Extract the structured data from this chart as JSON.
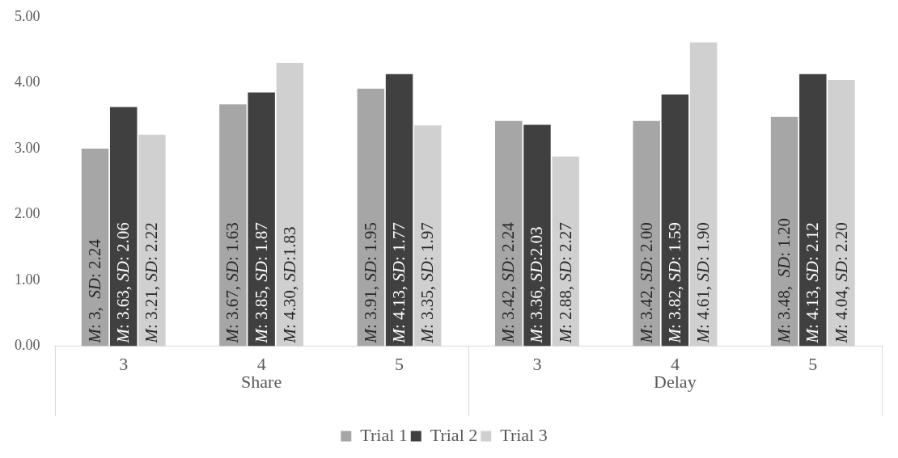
{
  "chart_data": {
    "type": "bar",
    "categories": [
      "3",
      "4",
      "5",
      "3",
      "4",
      "5"
    ],
    "annotations": [
      "Share",
      "Delay"
    ],
    "series": [
      {
        "name": "Trial 1",
        "color": "#a6a6a6",
        "values": [
          3,
          3.67,
          3.91,
          3.42,
          3.42,
          3.48
        ],
        "value_labels": [
          "M: 3,  SD: 2.24",
          "M: 3.67, SD: 1.63",
          "M: 3.91, SD: 1.95",
          "M: 3.42, SD: 2.24",
          "M: 3.42, SD: 2.00",
          "M: 3.48,  SD: 1.20"
        ]
      },
      {
        "name": "Trial 2",
        "color": "#404040",
        "values": [
          3.63,
          3.85,
          4.13,
          3.36,
          3.82,
          4.13
        ],
        "value_labels": [
          "M: 3.63, SD: 2.06",
          "M: 3.85, SD: 1.87",
          "M: 4.13, SD: 1.77",
          "M: 3.36, SD:2.03",
          "M: 3.82, SD: 1.59",
          "M: 4.13, SD: 2.12"
        ]
      },
      {
        "name": "Trial 3",
        "color": "#d0d0d0",
        "values": [
          3.21,
          4.3,
          3.35,
          2.88,
          4.61,
          4.04
        ],
        "value_labels": [
          "M: 3.21, SD: 2.22",
          "M: 4.30, SD:1.83",
          "M: 3.35, SD: 1.97",
          "M: 2.88, SD: 2.27",
          "M: 4.61, SD: 1.90",
          "M: 4.04, SD: 2.20"
        ]
      }
    ],
    "ylim": [
      0,
      5
    ],
    "yticks": [
      {
        "value": 0,
        "label": "0.00"
      },
      {
        "value": 1,
        "label": "1.00"
      },
      {
        "value": 2,
        "label": "2.00"
      },
      {
        "value": 3,
        "label": "3.00"
      },
      {
        "value": 4,
        "label": "4.00"
      },
      {
        "value": 5,
        "label": "5.00"
      }
    ],
    "legend": "bottom"
  }
}
